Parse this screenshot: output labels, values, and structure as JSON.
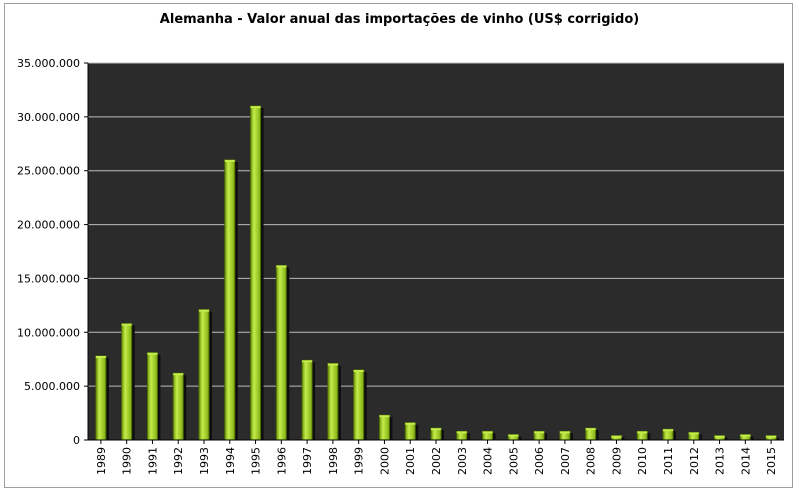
{
  "chart_data": {
    "type": "bar",
    "title": "Alemanha - Valor anual das importações de vinho (US$ corrigido)",
    "xlabel": "",
    "ylabel": "",
    "categories": [
      "1989",
      "1990",
      "1991",
      "1992",
      "1993",
      "1994",
      "1995",
      "1996",
      "1997",
      "1998",
      "1999",
      "2000",
      "2001",
      "2002",
      "2003",
      "2004",
      "2005",
      "2006",
      "2007",
      "2008",
      "2009",
      "2010",
      "2011",
      "2012",
      "2013",
      "2014",
      "2015"
    ],
    "series": [
      {
        "values": [
          7800000,
          10800000,
          8100000,
          6200000,
          12100000,
          26000000,
          31000000,
          16200000,
          7400000,
          7100000,
          6500000,
          2300000,
          1600000,
          1100000,
          800000,
          800000,
          500000,
          800000,
          800000,
          1100000,
          400000,
          800000,
          1000000,
          700000,
          400000,
          500000,
          400000
        ]
      }
    ],
    "ylim": [
      0,
      35000000
    ],
    "yticks": [
      0,
      5000000,
      10000000,
      15000000,
      20000000,
      25000000,
      30000000,
      35000000
    ],
    "ytick_labels": [
      "0",
      "5.000.000",
      "10.000.000",
      "15.000.000",
      "20.000.000",
      "25.000.000",
      "30.000.000",
      "35.000.000"
    ],
    "grid": true,
    "legend": "none",
    "colors": {
      "plot_background": "#2b2b2b",
      "bar_fill": "#8cc014",
      "bar_highlight": "#c4ec4a",
      "bar_edge": "#4e6c08",
      "bar_shadow": "#0e0e0e",
      "gridline": "#bdbdbd"
    }
  }
}
